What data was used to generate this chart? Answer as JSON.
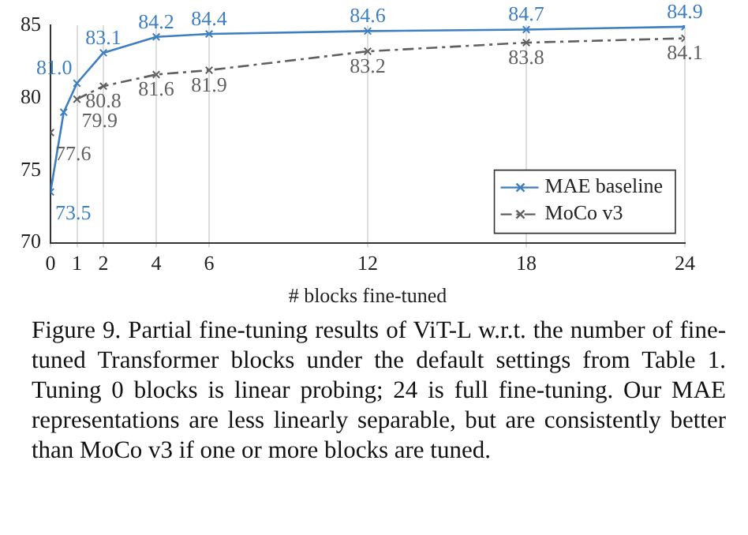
{
  "chart_data": {
    "type": "line",
    "xlabel": "# blocks fine-tuned",
    "x": [
      0,
      0.5,
      1,
      2,
      4,
      6,
      12,
      18,
      24
    ],
    "series": [
      {
        "name": "MAE baseline",
        "color": "#3d7fc0",
        "line_style": "solid",
        "values": [
          73.5,
          79.0,
          81.0,
          83.1,
          84.2,
          84.4,
          84.6,
          84.7,
          84.9
        ],
        "value_labels": [
          "73.5",
          null,
          "81.0",
          "83.1",
          "84.2",
          "84.4",
          "84.6",
          "84.7",
          "84.9"
        ]
      },
      {
        "name": "MoCo v3",
        "color": "#606060",
        "line_style": "dashdot",
        "values": [
          77.6,
          null,
          79.9,
          80.8,
          81.6,
          81.9,
          83.2,
          83.8,
          84.1
        ],
        "value_labels": [
          "77.6",
          null,
          "79.9",
          "80.8",
          "81.6",
          "81.9",
          "83.2",
          "83.8",
          "84.1"
        ]
      }
    ],
    "xlim": [
      0,
      24
    ],
    "xticks": [
      0,
      1,
      2,
      4,
      6,
      12,
      18,
      24
    ],
    "ylim": [
      70,
      85
    ],
    "yticks": [
      70,
      75,
      80,
      85
    ],
    "grid": "x",
    "legend": "bottom right",
    "marker": "cross",
    "annotations": [
      "Figure 9. Partial fine-tuning results of ViT-L w.r.t. the number of fine-tuned Transformer blocks under the default settings from Table 1. Tuning 0 blocks is linear probing; 24 is full fine-tuning. Our MAE representations are less linearly separable, but are consistently better than MoCo v3 if one or more blocks are tuned."
    ]
  }
}
